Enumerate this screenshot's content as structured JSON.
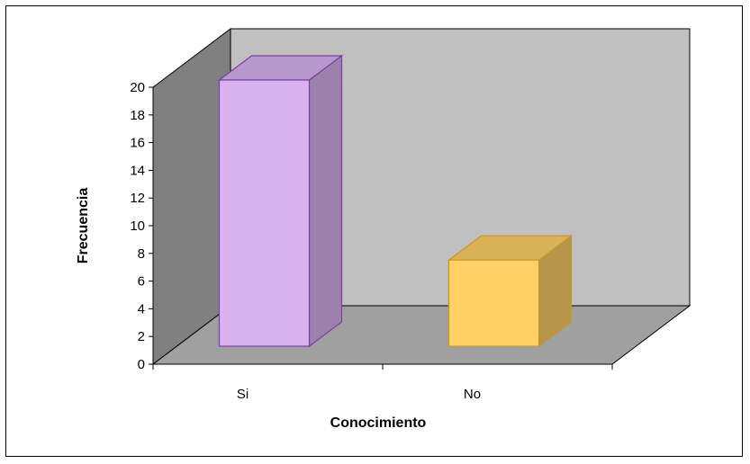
{
  "chart_data": {
    "type": "bar",
    "categories": [
      "Si",
      "No"
    ],
    "values": [
      20,
      7
    ],
    "xlabel": "Conocimiento",
    "ylabel": "Frecuencia",
    "ylim": [
      0,
      20
    ],
    "yticks": [
      0,
      2,
      4,
      6,
      8,
      10,
      12,
      14,
      16,
      18,
      20
    ],
    "grid": false,
    "three_d": true,
    "colors": {
      "bars": [
        "#D9B3F0",
        "#FFD166"
      ],
      "bar_borders": [
        "#7A3FA0",
        "#C9952A"
      ],
      "back_wall": "#C0C0C0",
      "side_wall": "#808080",
      "floor": "#A0A0A0"
    }
  }
}
